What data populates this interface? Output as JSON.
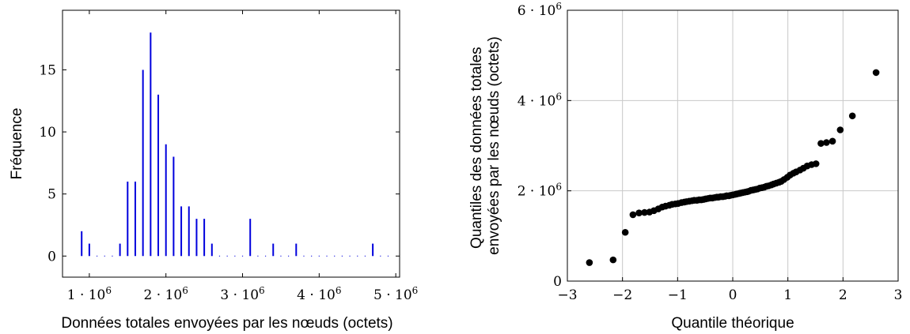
{
  "chart_data": [
    {
      "type": "bar",
      "xlabel": "Données totales envoyées par les nœuds (octets)",
      "ylabel": "Fréquence",
      "xlim": [
        650000,
        5050000
      ],
      "ylim": [
        -1.7,
        19.8
      ],
      "x_ticks": [
        1000000,
        2000000,
        3000000,
        4000000,
        5000000
      ],
      "x_tick_labels": [
        {
          "mant": "1 · 10",
          "exp": "6"
        },
        {
          "mant": "2 · 10",
          "exp": "6"
        },
        {
          "mant": "3 · 10",
          "exp": "6"
        },
        {
          "mant": "4 · 10",
          "exp": "6"
        },
        {
          "mant": "5 · 10",
          "exp": "6"
        }
      ],
      "y_ticks": [
        0,
        5,
        10,
        15
      ],
      "y_tick_labels": [
        "0",
        "5",
        "10",
        "15"
      ],
      "bar_color": "#0000dd",
      "bin_start": 900000,
      "bin_width": 100000,
      "values": [
        2,
        1,
        0,
        0,
        0,
        1,
        6,
        6,
        15,
        18,
        13,
        9,
        8,
        4,
        4,
        3,
        3,
        1,
        0,
        0,
        0,
        0,
        3,
        0,
        0,
        1,
        0,
        0,
        1,
        0,
        0,
        0,
        0,
        0,
        0,
        0,
        0,
        0,
        1,
        0,
        0
      ]
    },
    {
      "type": "scatter",
      "xlabel": "Quantile théorique",
      "ylabel": [
        "Quantiles des données totales",
        "envoyées par les nœuds (octets)"
      ],
      "xlim": [
        -3,
        3
      ],
      "ylim": [
        0,
        6000000
      ],
      "grid": true,
      "x_ticks": [
        -3,
        -2,
        -1,
        0,
        1,
        2,
        3
      ],
      "x_tick_labels": [
        "−3",
        "−2",
        "−1",
        "0",
        "1",
        "2",
        "3"
      ],
      "y_ticks": [
        0,
        2000000,
        4000000,
        6000000
      ],
      "y_tick_labels": [
        {
          "mant": "0",
          "exp": ""
        },
        {
          "mant": "2 · 10",
          "exp": "6"
        },
        {
          "mant": "4 · 10",
          "exp": "6"
        },
        {
          "mant": "6 · 10",
          "exp": "6"
        }
      ],
      "point_color": "#000000",
      "points": [
        [
          -2.6,
          410000
        ],
        [
          -2.17,
          470000
        ],
        [
          -1.95,
          1080000
        ],
        [
          -1.81,
          1470000
        ],
        [
          -1.7,
          1510000
        ],
        [
          -1.6,
          1520000
        ],
        [
          -1.51,
          1530000
        ],
        [
          -1.43,
          1560000
        ],
        [
          -1.35,
          1600000
        ],
        [
          -1.28,
          1640000
        ],
        [
          -1.22,
          1660000
        ],
        [
          -1.15,
          1680000
        ],
        [
          -1.1,
          1700000
        ],
        [
          -1.04,
          1710000
        ],
        [
          -0.99,
          1720000
        ],
        [
          -0.93,
          1740000
        ],
        [
          -0.88,
          1750000
        ],
        [
          -0.84,
          1760000
        ],
        [
          -0.79,
          1770000
        ],
        [
          -0.74,
          1780000
        ],
        [
          -0.7,
          1790000
        ],
        [
          -0.65,
          1790000
        ],
        [
          -0.61,
          1800000
        ],
        [
          -0.57,
          1800000
        ],
        [
          -0.53,
          1810000
        ],
        [
          -0.49,
          1820000
        ],
        [
          -0.45,
          1830000
        ],
        [
          -0.41,
          1840000
        ],
        [
          -0.37,
          1840000
        ],
        [
          -0.33,
          1850000
        ],
        [
          -0.29,
          1860000
        ],
        [
          -0.26,
          1860000
        ],
        [
          -0.22,
          1870000
        ],
        [
          -0.18,
          1870000
        ],
        [
          -0.14,
          1880000
        ],
        [
          -0.11,
          1890000
        ],
        [
          -0.07,
          1890000
        ],
        [
          -0.04,
          1900000
        ],
        [
          0.0,
          1910000
        ],
        [
          0.04,
          1920000
        ],
        [
          0.07,
          1930000
        ],
        [
          0.11,
          1940000
        ],
        [
          0.14,
          1950000
        ],
        [
          0.18,
          1960000
        ],
        [
          0.22,
          1970000
        ],
        [
          0.26,
          1980000
        ],
        [
          0.29,
          1990000
        ],
        [
          0.33,
          2010000
        ],
        [
          0.37,
          2020000
        ],
        [
          0.41,
          2030000
        ],
        [
          0.45,
          2040000
        ],
        [
          0.49,
          2060000
        ],
        [
          0.53,
          2070000
        ],
        [
          0.57,
          2080000
        ],
        [
          0.61,
          2100000
        ],
        [
          0.65,
          2110000
        ],
        [
          0.7,
          2130000
        ],
        [
          0.74,
          2150000
        ],
        [
          0.79,
          2170000
        ],
        [
          0.84,
          2190000
        ],
        [
          0.88,
          2210000
        ],
        [
          0.93,
          2250000
        ],
        [
          0.99,
          2300000
        ],
        [
          1.04,
          2350000
        ],
        [
          1.1,
          2390000
        ],
        [
          1.15,
          2420000
        ],
        [
          1.22,
          2460000
        ],
        [
          1.28,
          2500000
        ],
        [
          1.35,
          2550000
        ],
        [
          1.43,
          2580000
        ],
        [
          1.51,
          2600000
        ],
        [
          1.6,
          3050000
        ],
        [
          1.7,
          3070000
        ],
        [
          1.81,
          3100000
        ],
        [
          1.95,
          3350000
        ],
        [
          2.17,
          3660000
        ],
        [
          2.6,
          4620000
        ]
      ]
    }
  ]
}
